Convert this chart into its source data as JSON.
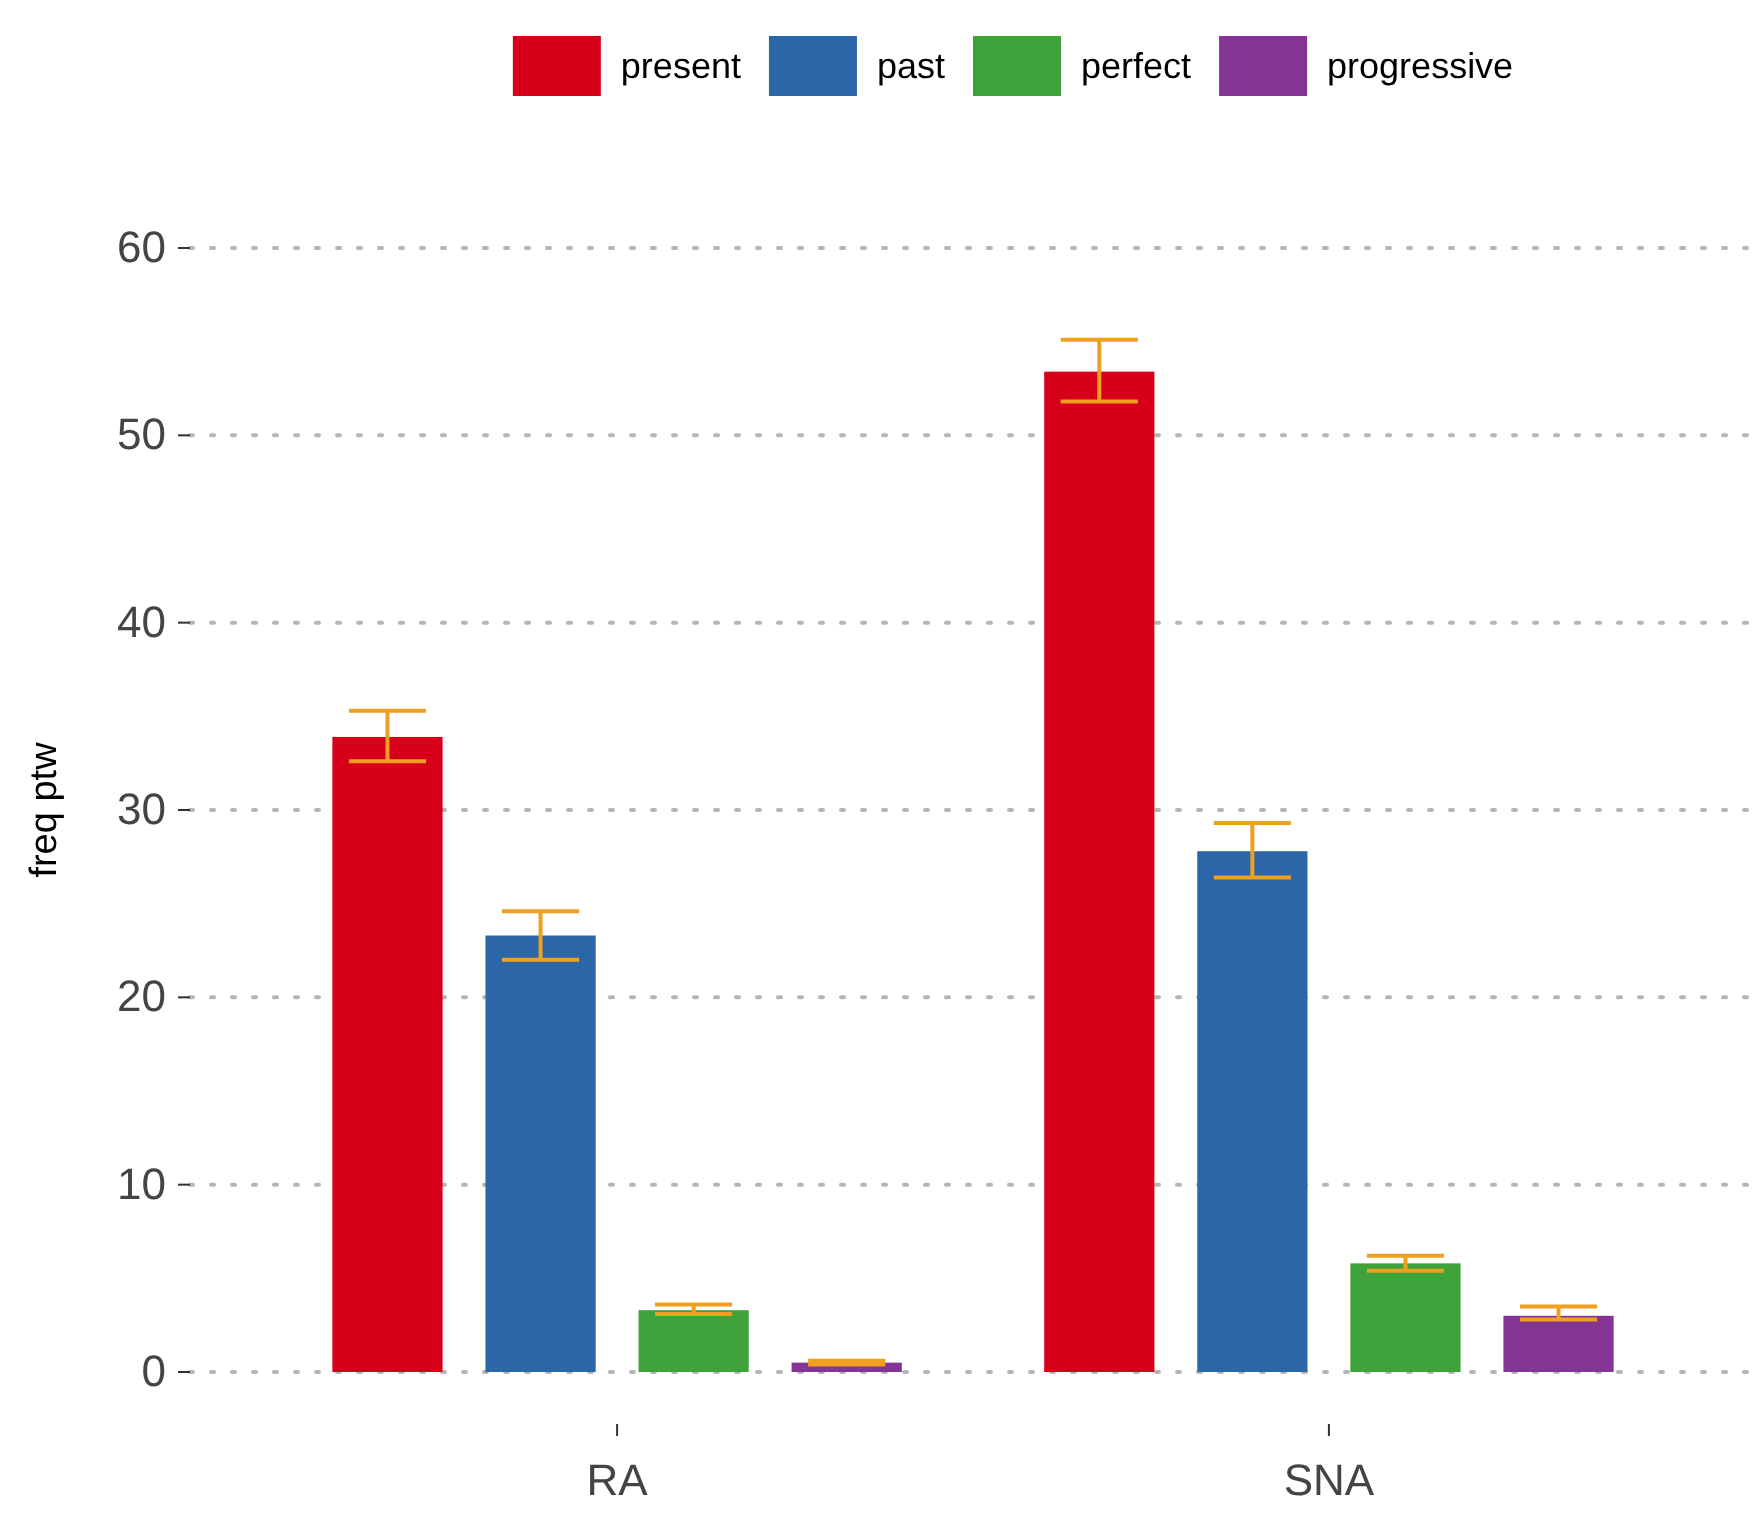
{
  "chart_data": {
    "type": "bar",
    "ylabel": "freq ptw",
    "categories": [
      "RA",
      "SNA"
    ],
    "series": [
      {
        "name": "present",
        "color": "#d7001a",
        "values": [
          33.9,
          53.4
        ],
        "errors": [
          [
            32.6,
            35.3
          ],
          [
            51.8,
            55.1
          ]
        ]
      },
      {
        "name": "past",
        "color": "#2b66a8",
        "values": [
          23.3,
          27.8
        ],
        "errors": [
          [
            22.0,
            24.6
          ],
          [
            26.4,
            29.3
          ]
        ]
      },
      {
        "name": "perfect",
        "color": "#3da33a",
        "values": [
          3.3,
          5.8
        ],
        "errors": [
          [
            3.1,
            3.6
          ],
          [
            5.4,
            6.2
          ]
        ]
      },
      {
        "name": "progressive",
        "color": "#833494",
        "values": [
          0.5,
          3.0
        ],
        "errors": [
          [
            0.4,
            0.6
          ],
          [
            2.8,
            3.5
          ]
        ]
      }
    ],
    "ylim": [
      0,
      60
    ],
    "yticks": [
      0,
      10,
      20,
      30,
      40,
      50,
      60
    ],
    "grid": "y",
    "legend": "top"
  }
}
